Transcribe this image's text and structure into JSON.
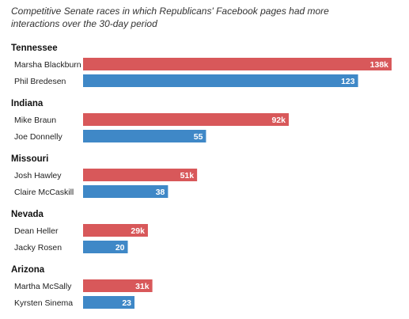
{
  "chart_data": {
    "type": "bar",
    "orientation": "horizontal",
    "title": "Competitive Senate races in which Republicans' Facebook pages had more interactions over the 30-day period",
    "title_lines": [
      "Competitive Senate races in which Republicans' Facebook pages had more",
      "interactions over the 30-day period"
    ],
    "xlim": [
      0,
      138
    ],
    "units": "thousands of interactions",
    "colors": {
      "republican": "#d8585a",
      "democrat": "#3f88c7"
    },
    "groups": [
      {
        "state": "Tennessee",
        "candidates": [
          {
            "name": "Marsha Blackburn",
            "party": "republican",
            "value": 138,
            "label": "138k"
          },
          {
            "name": "Phil Bredesen",
            "party": "democrat",
            "value": 123,
            "label": "123"
          }
        ]
      },
      {
        "state": "Indiana",
        "candidates": [
          {
            "name": "Mike Braun",
            "party": "republican",
            "value": 92,
            "label": "92k"
          },
          {
            "name": "Joe Donnelly",
            "party": "democrat",
            "value": 55,
            "label": "55"
          }
        ]
      },
      {
        "state": "Missouri",
        "candidates": [
          {
            "name": "Josh Hawley",
            "party": "republican",
            "value": 51,
            "label": "51k"
          },
          {
            "name": "Claire McCaskill",
            "party": "democrat",
            "value": 38,
            "label": "38"
          }
        ]
      },
      {
        "state": "Nevada",
        "candidates": [
          {
            "name": "Dean Heller",
            "party": "republican",
            "value": 29,
            "label": "29k"
          },
          {
            "name": "Jacky Rosen",
            "party": "democrat",
            "value": 20,
            "label": "20"
          }
        ]
      },
      {
        "state": "Arizona",
        "candidates": [
          {
            "name": "Martha McSally",
            "party": "republican",
            "value": 31,
            "label": "31k"
          },
          {
            "name": "Kyrsten Sinema",
            "party": "democrat",
            "value": 23,
            "label": "23"
          }
        ]
      }
    ]
  }
}
